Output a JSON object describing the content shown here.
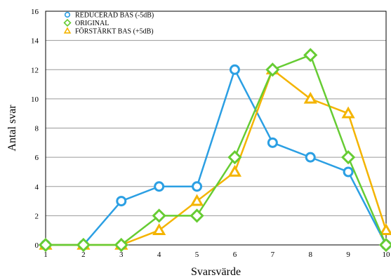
{
  "chart_data": {
    "type": "line",
    "title": "",
    "xlabel": "Svarsvärde",
    "ylabel": "Antal svar",
    "x": [
      1,
      2,
      3,
      4,
      5,
      6,
      7,
      8,
      9,
      10
    ],
    "xlim": [
      1,
      10
    ],
    "ylim": [
      0,
      16
    ],
    "yticks": [
      0,
      2,
      4,
      6,
      8,
      10,
      12,
      14,
      16
    ],
    "grid": "horizontal",
    "legend_position": "top-left",
    "series": [
      {
        "name": "REDUCERAD BAS (-5dB)",
        "color": "#2b9fe3",
        "marker": "circle",
        "values": [
          0,
          0,
          3,
          4,
          4,
          12,
          7,
          6,
          5,
          0
        ]
      },
      {
        "name": "ORIGINAL",
        "color": "#66cc33",
        "marker": "diamond",
        "values": [
          0,
          0,
          0,
          2,
          2,
          6,
          12,
          13,
          6,
          0
        ]
      },
      {
        "name": "FÖRSTÄRKT BAS (+5dB)",
        "color": "#f4b400",
        "marker": "triangle",
        "values": [
          0,
          0,
          0,
          1,
          3,
          5,
          12,
          10,
          9,
          1
        ]
      }
    ]
  }
}
